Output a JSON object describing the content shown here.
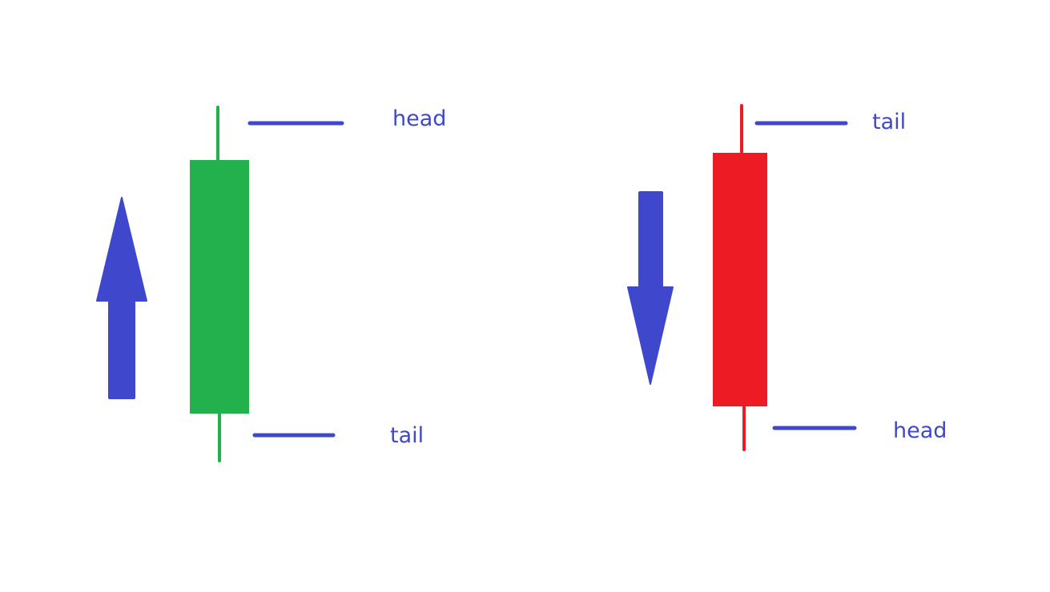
{
  "colors": {
    "bullish": "#23b14d",
    "bearish": "#ed1c24",
    "annotation": "#3f48cc",
    "background": "#ffffff"
  },
  "bullish_candle": {
    "direction": "up",
    "arrow_icon": "arrow-up-icon",
    "labels": {
      "top": "head",
      "bottom": "tail"
    }
  },
  "bearish_candle": {
    "direction": "down",
    "arrow_icon": "arrow-down-icon",
    "labels": {
      "top": "tail",
      "bottom": "head"
    }
  }
}
